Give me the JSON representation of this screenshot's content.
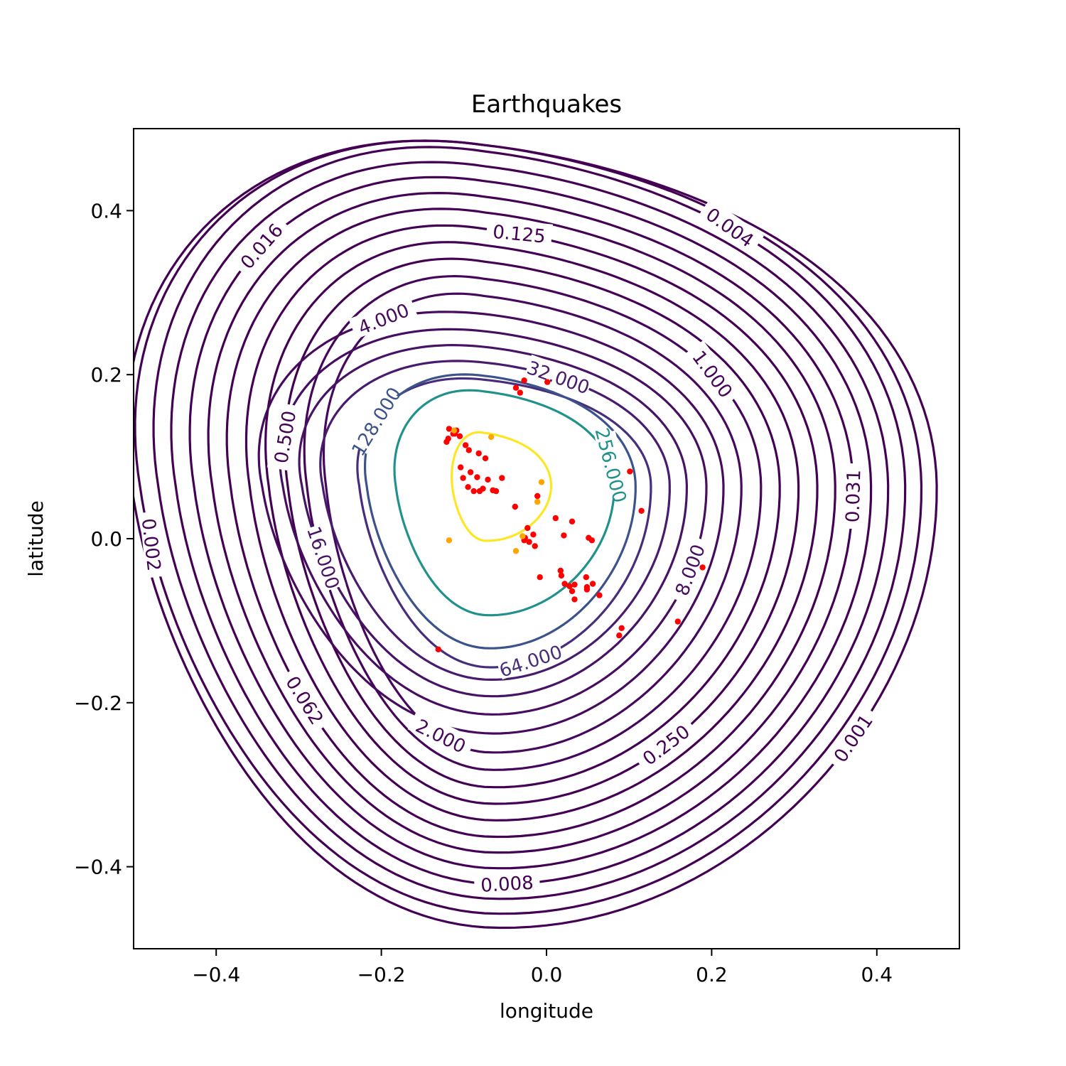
{
  "chart_data": {
    "type": "contour",
    "title": "Earthquakes",
    "xlabel": "longitude",
    "ylabel": "latitude",
    "xlim": [
      -0.5,
      0.5
    ],
    "ylim": [
      -0.5,
      0.5
    ],
    "xticks": [
      {
        "value": -0.4,
        "label": "−0.4"
      },
      {
        "value": -0.2,
        "label": "−0.2"
      },
      {
        "value": 0.0,
        "label": "0.0"
      },
      {
        "value": 0.2,
        "label": "0.2"
      },
      {
        "value": 0.4,
        "label": "0.4"
      }
    ],
    "yticks": [
      {
        "value": 0.4,
        "label": "0.4"
      },
      {
        "value": 0.2,
        "label": "0.2"
      },
      {
        "value": 0.0,
        "label": "0.0"
      },
      {
        "value": -0.2,
        "label": "−0.2"
      },
      {
        "value": -0.4,
        "label": "−0.4"
      }
    ],
    "grid": false,
    "legend": "none",
    "colormap": "viridis",
    "center": [
      -0.075,
      0.065
    ],
    "contour_levels": [
      {
        "level": 0.001,
        "label": "0.001",
        "color": "#440154",
        "extent": {
          "xmin": -0.5,
          "xmax": 0.455,
          "ymin": -0.47,
          "ymax": 0.5
        }
      },
      {
        "level": 0.002,
        "label": "0.002",
        "color": "#440154",
        "extent": {
          "xmin": -0.49,
          "xmax": 0.437,
          "ymin": -0.453,
          "ymax": 0.5
        }
      },
      {
        "level": 0.004,
        "label": "0.004",
        "color": "#440154",
        "extent": {
          "xmin": -0.468,
          "xmax": 0.418,
          "ymin": -0.435,
          "ymax": 0.492
        }
      },
      {
        "level": 0.008,
        "label": "0.008",
        "color": "#440154",
        "extent": {
          "xmin": -0.447,
          "xmax": 0.398,
          "ymin": -0.417,
          "ymax": 0.473
        }
      },
      {
        "level": 0.016,
        "label": "0.016",
        "color": "#440154",
        "extent": {
          "xmin": -0.425,
          "xmax": 0.378,
          "ymin": -0.398,
          "ymax": 0.454
        }
      },
      {
        "level": 0.031,
        "label": "0.031",
        "color": "#440154",
        "extent": {
          "xmin": -0.403,
          "xmax": 0.357,
          "ymin": -0.379,
          "ymax": 0.434
        }
      },
      {
        "level": 0.062,
        "label": "0.062",
        "color": "#440154",
        "extent": {
          "xmin": -0.381,
          "xmax": 0.336,
          "ymin": -0.36,
          "ymax": 0.414
        }
      },
      {
        "level": 0.125,
        "label": "0.125",
        "color": "#440154",
        "extent": {
          "xmin": -0.358,
          "xmax": 0.315,
          "ymin": -0.34,
          "ymax": 0.393
        }
      },
      {
        "level": 0.25,
        "label": "0.250",
        "color": "#440154",
        "extent": {
          "xmin": -0.335,
          "xmax": 0.293,
          "ymin": -0.32,
          "ymax": 0.372
        }
      },
      {
        "level": 0.5,
        "label": "0.500",
        "color": "#440154",
        "extent": {
          "xmin": -0.312,
          "xmax": 0.271,
          "ymin": -0.3,
          "ymax": 0.351
        }
      },
      {
        "level": 1.0,
        "label": "1.000",
        "color": "#450559",
        "extent": {
          "xmin": -0.289,
          "xmax": 0.249,
          "ymin": -0.279,
          "ymax": 0.329
        }
      },
      {
        "level": 2.0,
        "label": "2.000",
        "color": "#46085c",
        "extent": {
          "xmin": -0.266,
          "xmax": 0.226,
          "ymin": -0.258,
          "ymax": 0.307
        }
      },
      {
        "level": 4.0,
        "label": "4.000",
        "color": "#460b5e",
        "extent": {
          "xmin": -0.343,
          "xmax": 0.205,
          "ymin": -0.235,
          "ymax": 0.284
        }
      },
      {
        "level": 8.0,
        "label": "8.000",
        "color": "#470d60",
        "extent": {
          "xmin": -0.318,
          "xmax": 0.185,
          "ymin": -0.212,
          "ymax": 0.262
        }
      },
      {
        "level": 16.0,
        "label": "16.000",
        "color": "#471365",
        "extent": {
          "xmin": -0.295,
          "xmax": 0.162,
          "ymin": -0.19,
          "ymax": 0.242
        }
      },
      {
        "level": 32.0,
        "label": "32.000",
        "color": "#481b6d",
        "extent": {
          "xmin": -0.27,
          "xmax": 0.142,
          "ymin": -0.17,
          "ymax": 0.222
        }
      },
      {
        "level": 64.0,
        "label": "64.000",
        "color": "#472d7b",
        "extent": {
          "xmin": -0.226,
          "xmax": 0.12,
          "ymin": -0.155,
          "ymax": 0.2
        }
      },
      {
        "level": 128.0,
        "label": "128.000",
        "color": "#3b528b",
        "extent": {
          "xmin": -0.217,
          "xmax": 0.102,
          "ymin": -0.132,
          "ymax": 0.205
        }
      },
      {
        "level": 256.0,
        "label": "256.000",
        "color": "#21918c",
        "extent": {
          "xmin": -0.182,
          "xmax": 0.077,
          "ymin": -0.092,
          "ymax": 0.185
        }
      },
      {
        "level": 512.0,
        "label": "",
        "color": "#fde725",
        "extent": {
          "xmin": -0.114,
          "xmax": 0.003,
          "ymin": -0.002,
          "ymax": 0.132
        }
      }
    ],
    "series": [
      {
        "color": "#ff0000",
        "points": [
          [
            -0.118,
            0.134
          ],
          [
            -0.113,
            0.128
          ],
          [
            -0.109,
            0.132
          ],
          [
            -0.105,
            0.125
          ],
          [
            -0.119,
            0.122
          ],
          [
            -0.111,
            0.128
          ],
          [
            -0.098,
            0.114
          ],
          [
            -0.094,
            0.108
          ],
          [
            -0.082,
            0.104
          ],
          [
            -0.074,
            0.098
          ],
          [
            -0.104,
            0.087
          ],
          [
            -0.092,
            0.081
          ],
          [
            -0.084,
            0.075
          ],
          [
            -0.101,
            0.074
          ],
          [
            -0.095,
            0.063
          ],
          [
            -0.088,
            0.058
          ],
          [
            -0.077,
            0.061
          ],
          [
            -0.071,
            0.072
          ],
          [
            -0.065,
            0.059
          ],
          [
            -0.061,
            0.058
          ],
          [
            -0.054,
            0.074
          ],
          [
            -0.081,
            0.058
          ],
          [
            -0.037,
            0.184
          ],
          [
            -0.032,
            0.178
          ],
          [
            -0.027,
            0.193
          ],
          [
            -0.011,
            0.052
          ],
          [
            -0.038,
            0.039
          ],
          [
            -0.023,
            0.013
          ],
          [
            -0.016,
            0.005
          ],
          [
            -0.026,
            0.001
          ],
          [
            -0.021,
            -0.004
          ],
          [
            -0.014,
            -0.009
          ],
          [
            -0.027,
            -0.002
          ],
          [
            0.001,
            0.191
          ],
          [
            0.011,
            0.025
          ],
          [
            0.031,
            0.021
          ],
          [
            0.021,
            0.004
          ],
          [
            0.051,
            0.001
          ],
          [
            0.055,
            -0.002
          ],
          [
            0.101,
            0.082
          ],
          [
            0.115,
            0.034
          ],
          [
            -0.008,
            -0.047
          ],
          [
            0.017,
            -0.039
          ],
          [
            0.018,
            -0.045
          ],
          [
            0.022,
            -0.055
          ],
          [
            0.028,
            -0.058
          ],
          [
            0.034,
            -0.056
          ],
          [
            0.031,
            -0.064
          ],
          [
            0.048,
            -0.047
          ],
          [
            0.049,
            -0.059
          ],
          [
            0.056,
            -0.055
          ],
          [
            0.049,
            -0.062
          ],
          [
            0.064,
            -0.069
          ],
          [
            0.034,
            -0.074
          ],
          [
            0.091,
            -0.109
          ],
          [
            0.088,
            -0.118
          ],
          [
            0.159,
            -0.101
          ],
          [
            0.189,
            -0.035
          ],
          [
            -0.131,
            -0.135
          ],
          [
            -0.121,
            0.118
          ]
        ]
      },
      {
        "color": "#ffa500",
        "points": [
          [
            -0.067,
            0.124
          ],
          [
            -0.118,
            -0.002
          ],
          [
            -0.037,
            -0.015
          ],
          [
            -0.011,
            0.045
          ],
          [
            -0.006,
            0.069
          ],
          [
            -0.112,
            0.132
          ],
          [
            -0.029,
            0.003
          ]
        ]
      }
    ]
  }
}
